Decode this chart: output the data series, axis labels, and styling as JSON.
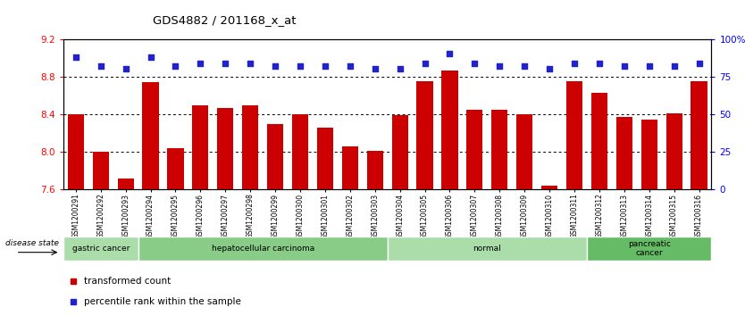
{
  "title": "GDS4882 / 201168_x_at",
  "samples": [
    "GSM1200291",
    "GSM1200292",
    "GSM1200293",
    "GSM1200294",
    "GSM1200295",
    "GSM1200296",
    "GSM1200297",
    "GSM1200298",
    "GSM1200299",
    "GSM1200300",
    "GSM1200301",
    "GSM1200302",
    "GSM1200303",
    "GSM1200304",
    "GSM1200305",
    "GSM1200306",
    "GSM1200307",
    "GSM1200308",
    "GSM1200309",
    "GSM1200310",
    "GSM1200311",
    "GSM1200312",
    "GSM1200313",
    "GSM1200314",
    "GSM1200315",
    "GSM1200316"
  ],
  "bar_values": [
    8.4,
    8.0,
    7.72,
    8.74,
    8.04,
    8.49,
    8.47,
    8.49,
    8.3,
    8.4,
    8.26,
    8.06,
    8.01,
    8.39,
    8.75,
    8.86,
    8.45,
    8.45,
    8.4,
    7.64,
    8.75,
    8.63,
    8.37,
    8.34,
    8.41,
    8.75
  ],
  "percentile_values": [
    88,
    82,
    80,
    88,
    82,
    84,
    84,
    84,
    82,
    82,
    82,
    82,
    80,
    80,
    84,
    90,
    84,
    82,
    82,
    80,
    84,
    84,
    82,
    82,
    82,
    84
  ],
  "bar_color": "#cc0000",
  "dot_color": "#2222cc",
  "ylim_left": [
    7.6,
    9.2
  ],
  "ylim_right": [
    0,
    100
  ],
  "yticks_left": [
    7.6,
    8.0,
    8.4,
    8.8,
    9.2
  ],
  "yticks_right": [
    0,
    25,
    50,
    75,
    100
  ],
  "ytick_labels_right": [
    "0",
    "25",
    "50",
    "75",
    "100%"
  ],
  "grid_values": [
    8.0,
    8.4,
    8.8
  ],
  "disease_groups": [
    {
      "label": "gastric cancer",
      "start": 0,
      "end": 3
    },
    {
      "label": "hepatocellular carcinoma",
      "start": 3,
      "end": 13
    },
    {
      "label": "normal",
      "start": 13,
      "end": 21
    },
    {
      "label": "pancreatic\ncancer",
      "start": 21,
      "end": 26
    }
  ],
  "group_colors": [
    "#aaddaa",
    "#88cc88",
    "#aaddaa",
    "#66bb66"
  ],
  "legend_labels": [
    "transformed count",
    "percentile rank within the sample"
  ],
  "legend_colors": [
    "#cc0000",
    "#2222cc"
  ],
  "disease_state_label": "disease state",
  "bar_bottom": 7.6
}
